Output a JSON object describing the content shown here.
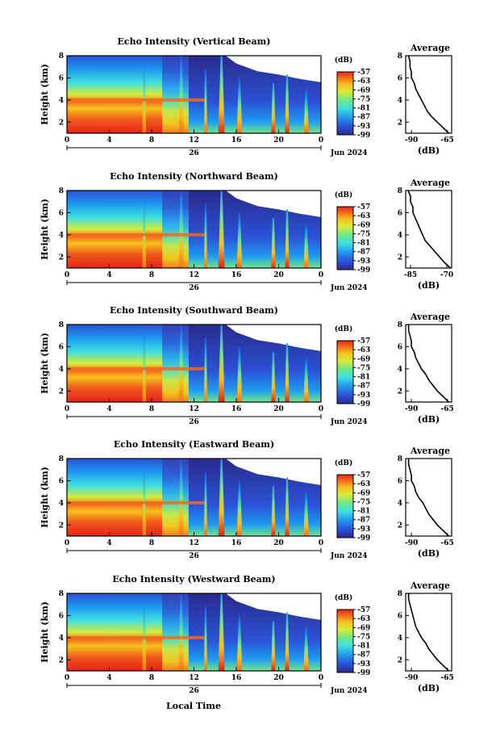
{
  "figure": {
    "xlabel": "Local Time",
    "date_label": "Jun 2024",
    "day_label": "26",
    "avg_title": "Average",
    "avg_xlabel": "(dB)",
    "cbar_unit": "(dB)"
  },
  "chart_data": [
    {
      "type": "heatmap",
      "title": "Echo Intensity (Vertical Beam)",
      "xlabel": "Local Time",
      "ylabel": "Height (km)",
      "x_ticks": [
        "0",
        "4",
        "8",
        "12",
        "16",
        "20",
        "0"
      ],
      "y_ticks": [
        "2",
        "4",
        "6",
        "8"
      ],
      "xlim": [
        0,
        24
      ],
      "ylim": [
        1,
        8
      ],
      "colorbar_ticks": [
        "-57",
        "-63",
        "-69",
        "-75",
        "-81",
        "-87",
        "-93",
        "-99"
      ],
      "colorbar_range": [
        -99,
        -57
      ],
      "average": {
        "title": "Average",
        "xlabel": "(dB)",
        "x_ticks": [
          "-90",
          "-65"
        ],
        "xlim": [
          -94,
          -62
        ],
        "y_ticks": [
          "2",
          "4",
          "6",
          "8"
        ],
        "height": [
          1.0,
          1.5,
          2.0,
          2.5,
          3.0,
          3.5,
          4.0,
          4.5,
          5.0,
          5.5,
          6.0,
          6.5,
          7.0,
          7.5,
          8.0
        ],
        "value": [
          -64,
          -68,
          -72,
          -76,
          -79,
          -81,
          -83,
          -85,
          -87,
          -88,
          -90,
          -90,
          -91,
          -91,
          -92
        ]
      }
    },
    {
      "type": "heatmap",
      "title": "Echo Intensity (Northward Beam)",
      "xlabel": "Local Time",
      "ylabel": "Height (km)",
      "x_ticks": [
        "0",
        "4",
        "8",
        "12",
        "16",
        "20",
        "0"
      ],
      "y_ticks": [
        "2",
        "4",
        "6",
        "8"
      ],
      "xlim": [
        0,
        24
      ],
      "ylim": [
        1,
        8
      ],
      "colorbar_ticks": [
        "-57",
        "-63",
        "-69",
        "-75",
        "-81",
        "-87",
        "-93",
        "-99"
      ],
      "colorbar_range": [
        -99,
        -57
      ],
      "average": {
        "title": "Average",
        "xlabel": "(dB)",
        "x_ticks": [
          "-85",
          "-70"
        ],
        "xlim": [
          -87,
          -68
        ],
        "y_ticks": [
          "2",
          "4",
          "6",
          "8"
        ],
        "height": [
          1.0,
          1.5,
          2.0,
          2.5,
          3.0,
          3.5,
          4.0,
          4.5,
          5.0,
          5.5,
          6.0,
          6.5,
          7.0,
          7.5,
          8.0
        ],
        "value": [
          -68.5,
          -71,
          -73,
          -75,
          -77,
          -79,
          -80,
          -81,
          -82,
          -83,
          -84,
          -84,
          -85,
          -85,
          -86
        ]
      }
    },
    {
      "type": "heatmap",
      "title": "Echo Intensity (Southward Beam)",
      "xlabel": "Local Time",
      "ylabel": "Height (km)",
      "x_ticks": [
        "0",
        "4",
        "8",
        "12",
        "16",
        "20",
        "0"
      ],
      "y_ticks": [
        "2",
        "4",
        "6",
        "8"
      ],
      "xlim": [
        0,
        24
      ],
      "ylim": [
        1,
        8
      ],
      "colorbar_ticks": [
        "-57",
        "-63",
        "-69",
        "-75",
        "-81",
        "-87",
        "-93",
        "-99"
      ],
      "colorbar_range": [
        -99,
        -57
      ],
      "average": {
        "title": "Average",
        "xlabel": "(dB)",
        "x_ticks": [
          "-90",
          "-65"
        ],
        "xlim": [
          -94,
          -62
        ],
        "y_ticks": [
          "2",
          "4",
          "6",
          "8"
        ],
        "height": [
          1.0,
          1.5,
          2.0,
          2.5,
          3.0,
          3.5,
          4.0,
          4.5,
          5.0,
          5.5,
          6.0,
          6.5,
          7.0,
          7.5,
          8.0
        ],
        "value": [
          -64,
          -68,
          -72,
          -75,
          -78,
          -80,
          -83,
          -85,
          -87,
          -88,
          -90,
          -90,
          -91,
          -92,
          -92
        ]
      }
    },
    {
      "type": "heatmap",
      "title": "Echo Intensity (Eastward Beam)",
      "xlabel": "Local Time",
      "ylabel": "Height (km)",
      "x_ticks": [
        "0",
        "4",
        "8",
        "12",
        "16",
        "20",
        "0"
      ],
      "y_ticks": [
        "2",
        "4",
        "6",
        "8"
      ],
      "xlim": [
        0,
        24
      ],
      "ylim": [
        1,
        8
      ],
      "colorbar_ticks": [
        "-57",
        "-63",
        "-69",
        "-75",
        "-81",
        "-87",
        "-93",
        "-99"
      ],
      "colorbar_range": [
        -99,
        -57
      ],
      "average": {
        "title": "Average",
        "xlabel": "(dB)",
        "x_ticks": [
          "-90",
          "-65"
        ],
        "xlim": [
          -94,
          -62
        ],
        "y_ticks": [
          "2",
          "4",
          "6",
          "8"
        ],
        "height": [
          1.0,
          1.5,
          2.0,
          2.5,
          3.0,
          3.5,
          4.0,
          4.5,
          5.0,
          5.5,
          6.0,
          6.5,
          7.0,
          7.5,
          8.0
        ],
        "value": [
          -64,
          -68,
          -72,
          -75,
          -78,
          -80,
          -82,
          -85,
          -87,
          -88,
          -90,
          -90,
          -91,
          -92,
          -92
        ]
      }
    },
    {
      "type": "heatmap",
      "title": "Echo Intensity (Westward Beam)",
      "xlabel": "Local Time",
      "ylabel": "Height (km)",
      "x_ticks": [
        "0",
        "4",
        "8",
        "12",
        "16",
        "20",
        "0"
      ],
      "y_ticks": [
        "2",
        "4",
        "6",
        "8"
      ],
      "xlim": [
        0,
        24
      ],
      "ylim": [
        1,
        8
      ],
      "colorbar_ticks": [
        "-57",
        "-63",
        "-69",
        "-75",
        "-81",
        "-87",
        "-93",
        "-99"
      ],
      "colorbar_range": [
        -99,
        -57
      ],
      "average": {
        "title": "Average",
        "xlabel": "(dB)",
        "x_ticks": [
          "-90",
          "-65"
        ],
        "xlim": [
          -94,
          -62
        ],
        "y_ticks": [
          "2",
          "4",
          "6",
          "8"
        ],
        "height": [
          1.0,
          1.5,
          2.0,
          2.5,
          3.0,
          3.5,
          4.0,
          4.5,
          5.0,
          5.5,
          6.0,
          6.5,
          7.0,
          7.5,
          8.0
        ],
        "value": [
          -64,
          -68,
          -72,
          -75,
          -78,
          -80,
          -83,
          -85,
          -87,
          -88,
          -89,
          -90,
          -91,
          -92,
          -92
        ]
      }
    }
  ]
}
